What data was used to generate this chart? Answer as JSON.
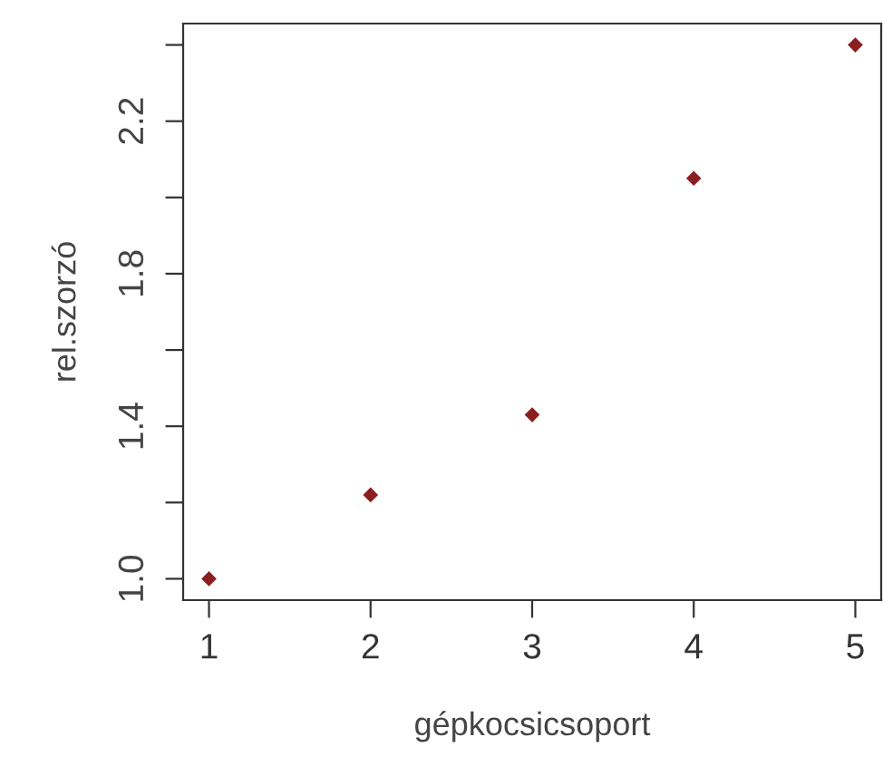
{
  "chart_data": {
    "type": "scatter",
    "xlabel": "gépkocsicsoport",
    "ylabel": "rel.szorzó",
    "x": [
      1,
      2,
      3,
      4,
      5
    ],
    "series": [
      {
        "color": "#8b1f1f",
        "values": [
          1.0,
          1.22,
          1.43,
          2.05,
          2.4
        ]
      }
    ],
    "xlim": [
      0.84,
      5.16
    ],
    "xticks": [
      1,
      2,
      3,
      4,
      5
    ],
    "ylim": [
      0.944,
      2.456
    ],
    "yticks": [
      {
        "value": 1.0,
        "label": "1.0"
      },
      {
        "value": 1.2,
        "label": null
      },
      1.4,
      {
        "value": 1.6,
        "label": null
      },
      1.8,
      {
        "value": 2.0,
        "label": null
      },
      2.2,
      {
        "value": 2.4,
        "label": null
      }
    ],
    "marker": "diamond",
    "grid": false,
    "legend": false
  }
}
